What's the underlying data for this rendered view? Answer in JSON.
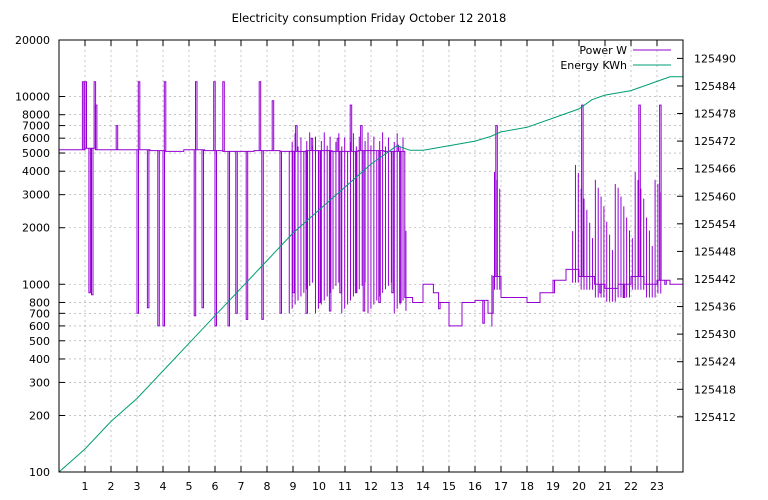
{
  "chart_data": {
    "type": "line",
    "title": "Electricity consumption Friday October 12 2018",
    "x_ticks": [
      "1",
      "2",
      "3",
      "4",
      "5",
      "6",
      "7",
      "8",
      "9",
      "10",
      "11",
      "12",
      "13",
      "14",
      "15",
      "16",
      "17",
      "18",
      "19",
      "20",
      "21",
      "22",
      "23"
    ],
    "xlim": [
      0,
      24
    ],
    "y_left_scale": "log",
    "y_left_lim": [
      100,
      20000
    ],
    "y_left_ticks": [
      "100",
      "200",
      "300",
      "400",
      "500",
      "600",
      "700",
      "800",
      "1000",
      "2000",
      "3000",
      "4000",
      "5000",
      "6000",
      "7000",
      "8000",
      "10000",
      "20000"
    ],
    "y_right_lim": [
      125400,
      125494
    ],
    "y_right_ticks": [
      "125412",
      "125418",
      "125424",
      "125430",
      "125436",
      "125442",
      "125448",
      "125454",
      "125460",
      "125466",
      "125472",
      "125478",
      "125484",
      "125490"
    ],
    "grid": true,
    "legend_position": "top-right",
    "colors": {
      "power": "#9400d3",
      "energy": "#009e73",
      "grid": "#a0a0a0"
    },
    "series": [
      {
        "name": "Power W",
        "axis": "left",
        "baseline": [
          [
            0,
            5200
          ],
          [
            0.9,
            5200
          ],
          [
            1,
            5300
          ],
          [
            1.4,
            5200
          ],
          [
            3.2,
            5200
          ],
          [
            3.5,
            5150
          ],
          [
            4.1,
            5100
          ],
          [
            4.8,
            5200
          ],
          [
            5.6,
            5150
          ],
          [
            6.3,
            5100
          ],
          [
            7.5,
            5150
          ],
          [
            8.5,
            5100
          ],
          [
            9.5,
            5150
          ],
          [
            10.5,
            5100
          ],
          [
            11.5,
            5150
          ],
          [
            12.5,
            5100
          ],
          [
            13.2,
            5100
          ],
          [
            13.3,
            850
          ],
          [
            13.6,
            800
          ],
          [
            14,
            1000
          ],
          [
            14.4,
            900
          ],
          [
            14.6,
            800
          ],
          [
            15,
            600
          ],
          [
            15.5,
            800
          ],
          [
            16,
            820
          ],
          [
            16.5,
            700
          ],
          [
            16.7,
            1100
          ],
          [
            17,
            850
          ],
          [
            18,
            800
          ],
          [
            18.5,
            900
          ],
          [
            19,
            1050
          ],
          [
            19.5,
            1200
          ],
          [
            20,
            1100
          ],
          [
            20.6,
            1000
          ],
          [
            21,
            950
          ],
          [
            21.5,
            1000
          ],
          [
            22,
            1100
          ],
          [
            22.5,
            1000
          ],
          [
            23,
            1050
          ],
          [
            23.5,
            1000
          ],
          [
            24,
            950
          ]
        ],
        "spikes_high": [
          [
            0.9,
            12000
          ],
          [
            1.0,
            12000
          ],
          [
            1.35,
            12000
          ],
          [
            1.4,
            9000
          ],
          [
            2.2,
            7000
          ],
          [
            3.05,
            12000
          ],
          [
            4.05,
            12000
          ],
          [
            5.25,
            12000
          ],
          [
            5.95,
            12000
          ],
          [
            6.3,
            12000
          ],
          [
            7.7,
            12000
          ],
          [
            8.2,
            9500
          ],
          [
            9.1,
            7000
          ],
          [
            9.7,
            6000
          ],
          [
            10.7,
            6000
          ],
          [
            11.2,
            9000
          ],
          [
            11.6,
            7000
          ],
          [
            13.0,
            5500
          ],
          [
            16.8,
            7000
          ],
          [
            20.1,
            9000
          ],
          [
            22.3,
            9000
          ],
          [
            23.1,
            9000
          ]
        ],
        "spikes_low": [
          [
            1.15,
            900
          ],
          [
            1.25,
            880
          ],
          [
            3.0,
            700
          ],
          [
            3.4,
            750
          ],
          [
            3.8,
            600
          ],
          [
            4.0,
            600
          ],
          [
            5.2,
            680
          ],
          [
            5.5,
            750
          ],
          [
            6.0,
            600
          ],
          [
            6.5,
            600
          ],
          [
            6.8,
            700
          ],
          [
            7.2,
            650
          ],
          [
            7.8,
            650
          ],
          [
            8.5,
            700
          ],
          [
            9.0,
            900
          ],
          [
            9.5,
            700
          ],
          [
            10.0,
            800
          ],
          [
            10.4,
            720
          ],
          [
            10.8,
            900
          ],
          [
            11.4,
            900
          ],
          [
            11.7,
            720
          ],
          [
            12.3,
            800
          ],
          [
            12.8,
            900
          ],
          [
            13.1,
            800
          ],
          [
            14.6,
            740
          ],
          [
            15.0,
            600
          ],
          [
            16.3,
            620
          ],
          [
            19.0,
            900
          ],
          [
            20.8,
            900
          ],
          [
            21.7,
            850
          ],
          [
            23.3,
            1000
          ]
        ],
        "busy_intervals": [
          [
            8.8,
            13.4
          ],
          [
            16.6,
            17.0
          ],
          [
            19.7,
            23.2
          ]
        ]
      },
      {
        "name": "Energy KWh",
        "axis": "right",
        "points": [
          [
            0,
            125400
          ],
          [
            1,
            125405
          ],
          [
            2,
            125411
          ],
          [
            3,
            125416
          ],
          [
            4,
            125422
          ],
          [
            5,
            125428
          ],
          [
            6,
            125434
          ],
          [
            7,
            125440
          ],
          [
            8,
            125446
          ],
          [
            9,
            125452
          ],
          [
            10,
            125457
          ],
          [
            11,
            125462
          ],
          [
            12,
            125467
          ],
          [
            13,
            125471
          ],
          [
            13.5,
            125470
          ],
          [
            14,
            125470
          ],
          [
            15,
            125471
          ],
          [
            16,
            125472
          ],
          [
            16.6,
            125473
          ],
          [
            17,
            125474
          ],
          [
            18,
            125475
          ],
          [
            19,
            125477
          ],
          [
            19.5,
            125478
          ],
          [
            20,
            125479
          ],
          [
            20.5,
            125481
          ],
          [
            21,
            125482
          ],
          [
            22,
            125483
          ],
          [
            22.5,
            125484
          ],
          [
            23,
            125485
          ],
          [
            23.5,
            125486
          ],
          [
            24,
            125486
          ]
        ]
      }
    ]
  }
}
